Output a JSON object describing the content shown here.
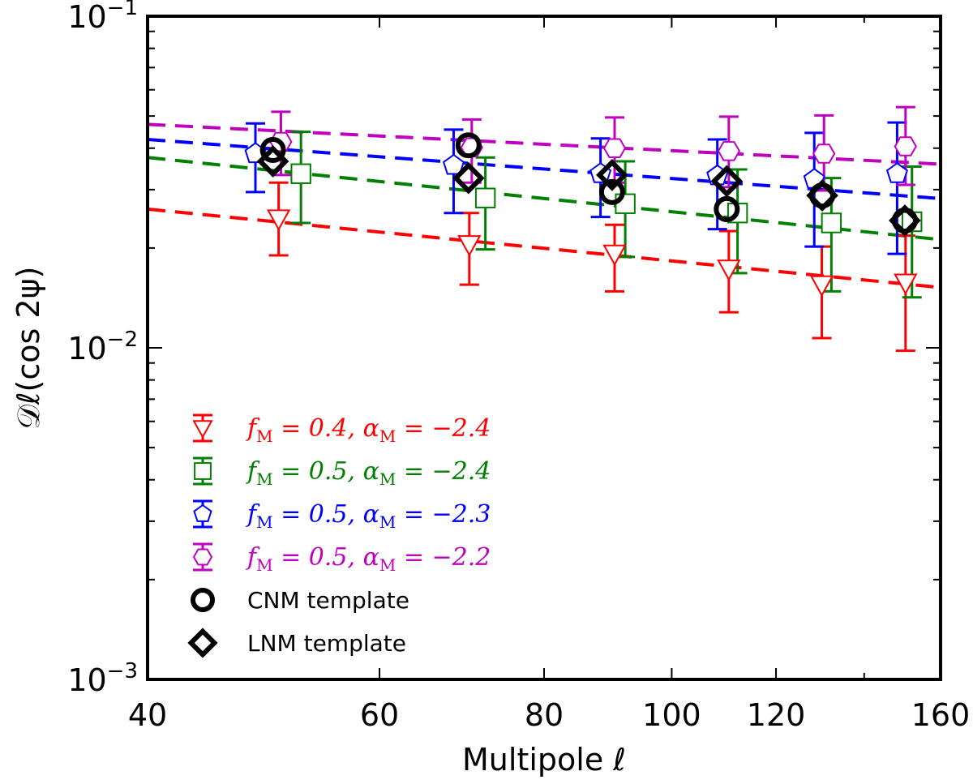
{
  "chart_data": {
    "type": "scatter",
    "xlabel": "Multipole ℓ",
    "ylabel": "𝒟ℓ(cos 2ψ)",
    "xscale": "log",
    "yscale": "log",
    "xlim": [
      40,
      160
    ],
    "ylim": [
      0.001,
      0.1
    ],
    "xticks": [
      {
        "value": 40,
        "label": "40"
      },
      {
        "value": 60,
        "label": "60"
      },
      {
        "value": 80,
        "label": "80"
      },
      {
        "value": 100,
        "label": "100"
      },
      {
        "value": 120,
        "label": "120"
      },
      {
        "value": 160,
        "label": "160"
      }
    ],
    "yticks": [
      {
        "value": 0.001,
        "base": "10",
        "exp": "−3"
      },
      {
        "value": 0.01,
        "base": "10",
        "exp": "−2"
      },
      {
        "value": 0.1,
        "base": "10",
        "exp": "−1"
      }
    ],
    "legend_position": "lower-left",
    "series": [
      {
        "name": "f_M = 0.4, α_M = −2.4",
        "label_parts": [
          "f",
          "M",
          " = 0.4, α",
          "M",
          " = −2.4"
        ],
        "color": "#ff0000",
        "marker": "triangle-down",
        "x": [
          50.3,
          70.2,
          90.5,
          110.5,
          130.0,
          150.5
        ],
        "y": [
          0.0245,
          0.0205,
          0.0192,
          0.0173,
          0.0155,
          0.0157
        ],
        "yerr_low": [
          0.019,
          0.0155,
          0.0148,
          0.0128,
          0.0107,
          0.0098
        ],
        "yerr_high": [
          0.0315,
          0.0255,
          0.0235,
          0.0225,
          0.0202,
          0.0218
        ],
        "fit": {
          "x": [
            40,
            160
          ],
          "y": [
            0.0262,
            0.0152
          ]
        }
      },
      {
        "name": "f_M = 0.5, α_M = −2.4",
        "label_parts": [
          "f",
          "M",
          " = 0.5, α",
          "M",
          " = −2.4"
        ],
        "color": "#008000",
        "marker": "square",
        "x": [
          52.3,
          72.2,
          92.2,
          112.2,
          132.2,
          152.2
        ],
        "y": [
          0.0335,
          0.0283,
          0.0272,
          0.0255,
          0.0238,
          0.024
        ],
        "yerr_low": [
          0.0238,
          0.0198,
          0.0188,
          0.0168,
          0.0148,
          0.0142
        ],
        "yerr_high": [
          0.0448,
          0.0375,
          0.0365,
          0.0345,
          0.0325,
          0.0352
        ],
        "fit": {
          "x": [
            40,
            160
          ],
          "y": [
            0.0375,
            0.0212
          ]
        }
      },
      {
        "name": "f_M = 0.5, α_M = −2.3",
        "label_parts": [
          "f",
          "M",
          " = 0.5, α",
          "M",
          " = −2.3"
        ],
        "color": "#0000ff",
        "marker": "pentagon",
        "x": [
          48.3,
          68.3,
          88.3,
          108.3,
          128.3,
          148.3
        ],
        "y": [
          0.0385,
          0.0355,
          0.0335,
          0.033,
          0.0322,
          0.0335
        ],
        "yerr_low": [
          0.0295,
          0.0255,
          0.0248,
          0.0228,
          0.0202,
          0.0192
        ],
        "yerr_high": [
          0.0475,
          0.0455,
          0.0428,
          0.0425,
          0.0445,
          0.0478
        ],
        "fit": {
          "x": [
            40,
            160
          ],
          "y": [
            0.0425,
            0.0282
          ]
        }
      },
      {
        "name": "f_M = 0.5, α_M = −2.2",
        "label_parts": [
          "f",
          "M",
          " = 0.5, α",
          "M",
          " = −2.2"
        ],
        "color": "#bf00bf",
        "marker": "hexagon",
        "x": [
          50.5,
          70.5,
          90.5,
          110.5,
          130.5,
          150.5
        ],
        "y": [
          0.0418,
          0.0402,
          0.04,
          0.0392,
          0.0385,
          0.0405
        ],
        "yerr_low": [
          0.0332,
          0.0315,
          0.0315,
          0.0305,
          0.0298,
          0.031
        ],
        "yerr_high": [
          0.0515,
          0.0488,
          0.0495,
          0.0498,
          0.0502,
          0.0532
        ],
        "fit": {
          "x": [
            40,
            160
          ],
          "y": [
            0.0472,
            0.0358
          ]
        }
      },
      {
        "name": "CNM template",
        "color": "#000000",
        "marker": "circle",
        "x": [
          49.8,
          70.1,
          90.1,
          110.1,
          130.1,
          150.3
        ],
        "y": [
          0.0395,
          0.0408,
          0.0295,
          0.0262,
          0.0288,
          0.0242
        ]
      },
      {
        "name": "LNM template",
        "color": "#000000",
        "marker": "diamond",
        "x": [
          49.8,
          70.1,
          90.1,
          110.1,
          130.1,
          150.3
        ],
        "y": [
          0.0365,
          0.0325,
          0.0332,
          0.0318,
          0.0288,
          0.0242
        ]
      }
    ]
  }
}
